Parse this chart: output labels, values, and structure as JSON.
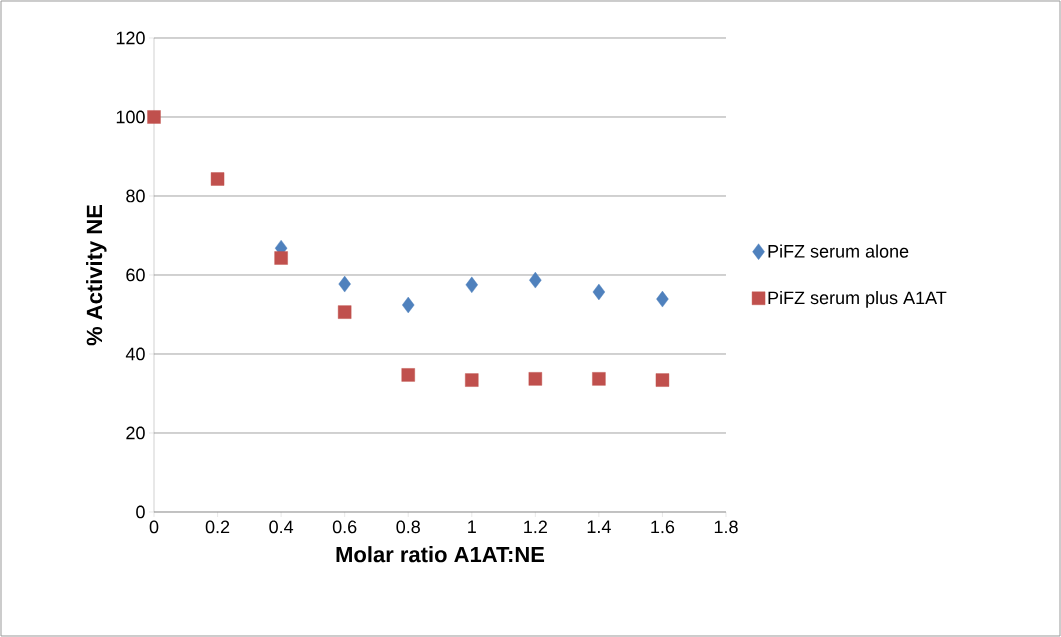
{
  "chart_data": {
    "type": "scatter",
    "xlabel": "Molar ratio A1AT:NE",
    "ylabel": "% Activity NE",
    "x": [
      0,
      0.2,
      0.4,
      0.6,
      0.8,
      1.0,
      1.2,
      1.4,
      1.6
    ],
    "series": [
      {
        "name": "PiFZ serum alone",
        "color": "#4f81bd",
        "marker": "diamond",
        "values": [
          null,
          null,
          66.8,
          57.7,
          52.4,
          57.5,
          58.7,
          55.7,
          53.9
        ]
      },
      {
        "name": "PiFZ serum plus A1AT",
        "color": "#c0504d",
        "marker": "square",
        "values": [
          100,
          84.3,
          64.3,
          50.6,
          34.7,
          33.4,
          33.7,
          33.7,
          33.4
        ]
      }
    ],
    "xlim": [
      0,
      1.8
    ],
    "ylim": [
      0,
      120
    ],
    "xticks": [
      0,
      0.2,
      0.4,
      0.6,
      0.8,
      1,
      1.2,
      1.4,
      1.6,
      1.8
    ],
    "yticks": [
      0,
      20,
      40,
      60,
      80,
      100,
      120
    ],
    "grid": "y",
    "legend": "right"
  }
}
